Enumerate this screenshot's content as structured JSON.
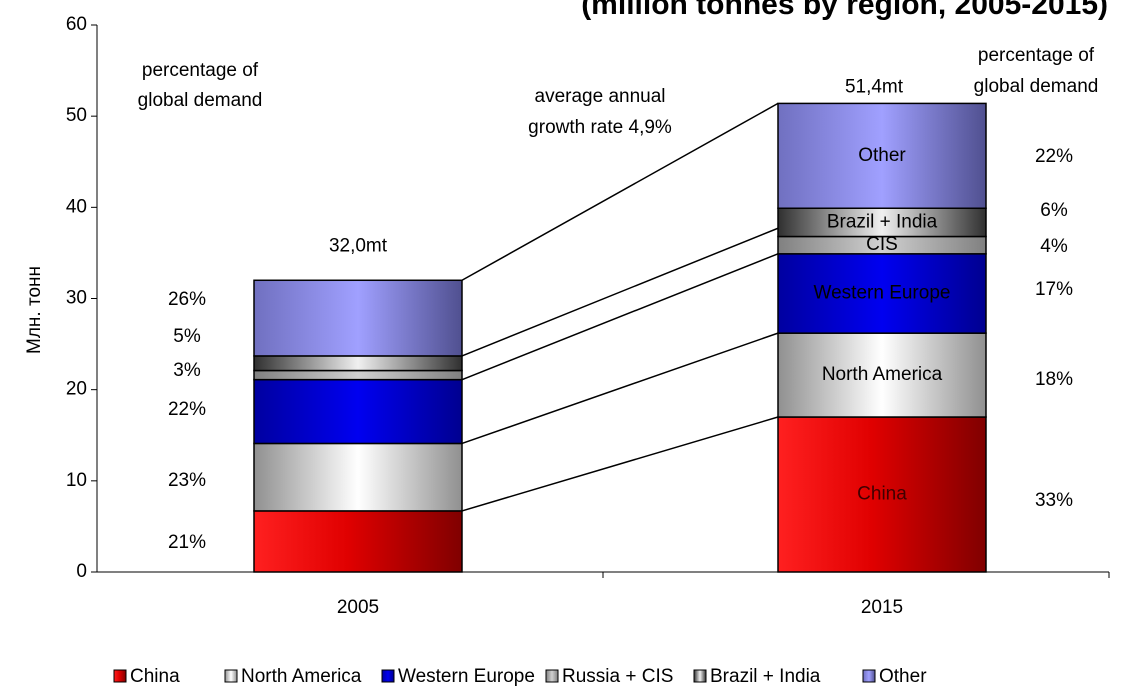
{
  "chart_data": {
    "type": "stacked_bar",
    "title": "(million tonnes by region, 2005-2015)",
    "y_label": "Млн. тонн",
    "categories": [
      "2005",
      "2015"
    ],
    "ylim": [
      0,
      60
    ],
    "yticks": [
      0,
      10,
      20,
      30,
      40,
      50,
      60
    ],
    "series": [
      {
        "name": "China",
        "color": "#e00000",
        "values": [
          6.7,
          17.0
        ],
        "share_labels": [
          "21%",
          "33%"
        ]
      },
      {
        "name": "North America",
        "color": "#e8e8e8",
        "values": [
          7.4,
          9.2
        ],
        "share_labels": [
          "23%",
          "18%"
        ]
      },
      {
        "name": "Western Europe",
        "color": "#0000e0",
        "values": [
          7.0,
          8.7
        ],
        "share_labels": [
          "22%",
          "17%"
        ]
      },
      {
        "name": "Russia + CIS",
        "color": "#b0b0b0",
        "values": [
          1.0,
          1.9
        ],
        "share_labels": [
          "3%",
          "4%"
        ]
      },
      {
        "name": "Brazil + India",
        "color": "#d8d8d8",
        "values": [
          1.6,
          3.1
        ],
        "share_labels": [
          "5%",
          "6%"
        ]
      },
      {
        "name": "Other",
        "color": "#9999ff",
        "values": [
          8.3,
          11.5
        ],
        "share_labels": [
          "26%",
          "22%"
        ]
      }
    ],
    "inner_labels": [
      "China",
      "North America",
      "Western Europe",
      "CIS",
      "Brazil + India",
      "Other"
    ],
    "total_labels": [
      "32,0mt",
      "51,4mt"
    ],
    "annotations": {
      "left_share_heading": [
        "percentage of",
        "global demand"
      ],
      "right_share_heading": [
        "percentage of",
        "global demand"
      ],
      "growth": [
        "average annual",
        "growth rate 4,9%"
      ]
    },
    "legend": "bottom"
  }
}
